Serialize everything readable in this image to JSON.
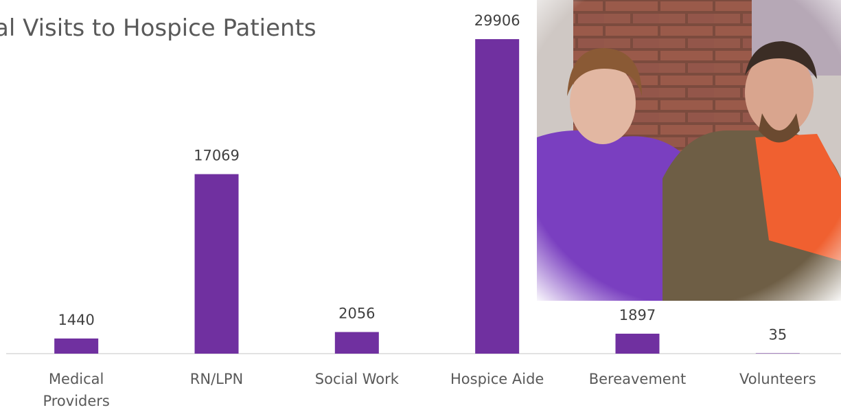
{
  "chart_data": {
    "type": "bar",
    "title": "al Visits to Hospice Patients",
    "categories": [
      "Medical Providers",
      "RN/LPN",
      "Social Work",
      "Hospice Aide",
      "Bereavement",
      "Volunteers"
    ],
    "values": [
      1440,
      17069,
      2056,
      29906,
      1897,
      35
    ],
    "color": "#7030a0",
    "ylim": [
      0,
      32000
    ]
  }
}
